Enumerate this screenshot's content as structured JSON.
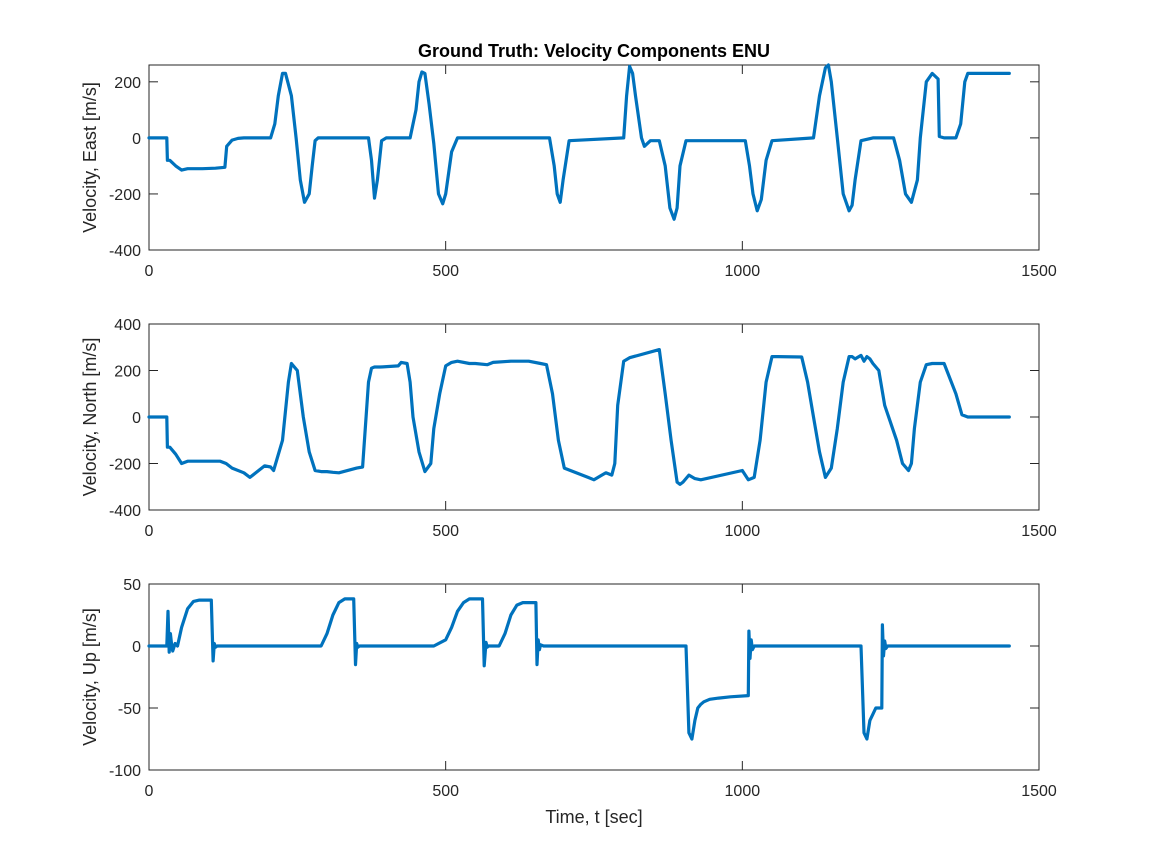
{
  "chart_data": [
    {
      "type": "line",
      "title": "Ground Truth: Velocity Components ENU",
      "xlabel": "",
      "ylabel": "Velocity, East [m/s]",
      "xlim": [
        0,
        1500
      ],
      "ylim": [
        -400,
        260
      ],
      "xticks": [
        0,
        500,
        1000,
        1500
      ],
      "yticks": [
        -400,
        -200,
        0,
        200
      ],
      "grid": false,
      "color": "#0072BD",
      "series": [
        {
          "x": [
            0,
            30,
            31,
            35,
            45,
            55,
            65,
            90,
            112,
            128,
            131,
            140,
            150,
            160,
            205,
            212,
            218,
            225,
            230,
            240,
            248,
            255,
            262,
            270,
            275,
            280,
            285,
            290,
            370,
            375,
            380,
            385,
            392,
            400,
            440,
            450,
            455,
            460,
            465,
            472,
            480,
            488,
            495,
            500,
            510,
            520,
            530,
            675,
            683,
            688,
            693,
            698,
            708,
            800,
            805,
            810,
            815,
            820,
            830,
            835,
            845,
            860,
            870,
            878,
            885,
            890,
            895,
            905,
            1005,
            1012,
            1018,
            1025,
            1032,
            1040,
            1050,
            1120,
            1130,
            1140,
            1145,
            1150,
            1160,
            1170,
            1180,
            1185,
            1190,
            1200,
            1220,
            1255,
            1265,
            1275,
            1285,
            1295,
            1300,
            1305,
            1310,
            1320,
            1330,
            1332,
            1340,
            1350,
            1360,
            1368,
            1375,
            1380,
            1390,
            1450
          ],
          "y": [
            0,
            0,
            -80,
            -80,
            -100,
            -115,
            -110,
            -110,
            -108,
            -105,
            -30,
            -8,
            -2,
            0,
            0,
            50,
            150,
            230,
            230,
            150,
            0,
            -150,
            -230,
            -200,
            -100,
            -10,
            0,
            0,
            0,
            -80,
            -215,
            -150,
            -10,
            0,
            0,
            100,
            200,
            235,
            230,
            120,
            -20,
            -200,
            -235,
            -200,
            -50,
            0,
            0,
            0,
            -100,
            -200,
            -230,
            -150,
            -10,
            0,
            150,
            255,
            230,
            150,
            0,
            -30,
            -10,
            -10,
            -100,
            -250,
            -290,
            -250,
            -100,
            -10,
            -10,
            -100,
            -200,
            -260,
            -220,
            -80,
            -10,
            0,
            150,
            250,
            260,
            200,
            0,
            -200,
            -260,
            -240,
            -150,
            -10,
            0,
            0,
            -80,
            -200,
            -230,
            -150,
            0,
            100,
            200,
            230,
            210,
            5,
            0,
            0,
            0,
            50,
            200,
            230,
            230,
            230
          ]
        }
      ]
    },
    {
      "type": "line",
      "title": "",
      "xlabel": "",
      "ylabel": "Velocity, North [m/s]",
      "xlim": [
        0,
        1500
      ],
      "ylim": [
        -400,
        400
      ],
      "xticks": [
        0,
        500,
        1000,
        1500
      ],
      "yticks": [
        -400,
        -200,
        0,
        200,
        400
      ],
      "grid": false,
      "color": "#0072BD",
      "series": [
        {
          "x": [
            0,
            30,
            31,
            35,
            45,
            55,
            65,
            90,
            120,
            130,
            140,
            160,
            170,
            180,
            195,
            205,
            210,
            225,
            235,
            240,
            250,
            260,
            270,
            280,
            290,
            300,
            310,
            320,
            350,
            360,
            370,
            375,
            380,
            390,
            420,
            425,
            435,
            440,
            445,
            455,
            465,
            475,
            480,
            490,
            500,
            510,
            520,
            540,
            550,
            570,
            580,
            610,
            640,
            660,
            670,
            680,
            690,
            700,
            720,
            740,
            750,
            760,
            770,
            780,
            785,
            790,
            800,
            810,
            860,
            870,
            880,
            890,
            895,
            900,
            910,
            920,
            930,
            1000,
            1010,
            1020,
            1030,
            1040,
            1050,
            1060,
            1100,
            1110,
            1120,
            1130,
            1140,
            1150,
            1160,
            1170,
            1180,
            1185,
            1190,
            1200,
            1205,
            1210,
            1215,
            1220,
            1230,
            1240,
            1260,
            1270,
            1280,
            1285,
            1290,
            1300,
            1310,
            1320,
            1330,
            1340,
            1360,
            1370,
            1380,
            1390,
            1450
          ],
          "y": [
            0,
            0,
            -130,
            -130,
            -160,
            -200,
            -190,
            -190,
            -190,
            -200,
            -220,
            -240,
            -260,
            -240,
            -210,
            -215,
            -230,
            -100,
            150,
            230,
            200,
            0,
            -150,
            -230,
            -235,
            -235,
            -238,
            -240,
            -220,
            -215,
            150,
            210,
            215,
            215,
            220,
            235,
            230,
            150,
            0,
            -150,
            -235,
            -200,
            -50,
            100,
            220,
            235,
            240,
            230,
            230,
            225,
            235,
            240,
            240,
            230,
            225,
            100,
            -100,
            -220,
            -240,
            -260,
            -270,
            -255,
            -240,
            -250,
            -200,
            50,
            240,
            255,
            290,
            100,
            -100,
            -280,
            -290,
            -280,
            -250,
            -265,
            -270,
            -230,
            -270,
            -260,
            -100,
            150,
            260,
            260,
            258,
            150,
            0,
            -150,
            -260,
            -220,
            -50,
            150,
            260,
            260,
            250,
            265,
            240,
            260,
            250,
            230,
            200,
            50,
            -100,
            -200,
            -230,
            -200,
            -50,
            150,
            225,
            230,
            230,
            230,
            100,
            10,
            0,
            0,
            0
          ]
        }
      ]
    },
    {
      "type": "line",
      "title": "",
      "xlabel": "Time, t [sec]",
      "ylabel": "Velocity, Up [m/s]",
      "xlim": [
        0,
        1500
      ],
      "ylim": [
        -100,
        50
      ],
      "xticks": [
        0,
        500,
        1000,
        1500
      ],
      "yticks": [
        -100,
        -50,
        0,
        50
      ],
      "grid": false,
      "color": "#0072BD",
      "series": [
        {
          "x": [
            0,
            30,
            32,
            34,
            36,
            38,
            40,
            44,
            48,
            55,
            65,
            75,
            85,
            95,
            105,
            108,
            110,
            112,
            115,
            130,
            260,
            290,
            300,
            310,
            320,
            330,
            340,
            345,
            348,
            350,
            352,
            355,
            370,
            480,
            500,
            510,
            520,
            530,
            540,
            550,
            562,
            565,
            568,
            570,
            572,
            575,
            590,
            600,
            610,
            620,
            630,
            640,
            652,
            654,
            656,
            658,
            660,
            665,
            680,
            905,
            910,
            915,
            920,
            925,
            930,
            935,
            945,
            960,
            980,
            1010,
            1011,
            1013,
            1015,
            1017,
            1020,
            1030,
            1200,
            1205,
            1210,
            1215,
            1220,
            1225,
            1230,
            1235,
            1236,
            1238,
            1240,
            1242,
            1245,
            1260,
            1450
          ],
          "y": [
            0,
            0,
            28,
            -5,
            10,
            2,
            -4,
            2,
            0,
            15,
            30,
            36,
            37,
            37,
            37,
            -12,
            2,
            -1,
            0,
            0,
            0,
            0,
            10,
            25,
            35,
            38,
            38,
            38,
            -15,
            2,
            -1,
            0,
            0,
            0,
            5,
            15,
            28,
            35,
            38,
            38,
            38,
            -16,
            3,
            -1,
            0,
            0,
            0,
            10,
            25,
            33,
            35,
            35,
            35,
            -15,
            5,
            -3,
            1,
            0,
            0,
            0,
            -70,
            -75,
            -60,
            -50,
            -47,
            -45,
            -43,
            -42,
            -41,
            -40,
            12,
            -10,
            5,
            -3,
            0,
            0,
            0,
            -70,
            -75,
            -60,
            -55,
            -50,
            -50,
            -50,
            17,
            -8,
            4,
            -2,
            0,
            0,
            0
          ]
        }
      ]
    }
  ]
}
